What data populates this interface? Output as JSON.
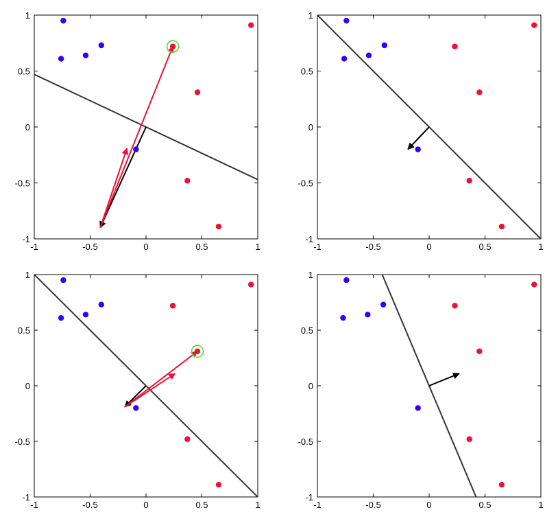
{
  "chart_data": [
    {
      "type": "scatter",
      "panel": "top-left",
      "xlim": [
        -1,
        1
      ],
      "ylim": [
        -1,
        1
      ],
      "xticks": [
        "-1",
        "-0.5",
        "0",
        "0.5",
        "1"
      ],
      "yticks": [
        "-1",
        "-0.5",
        "0",
        "0.5",
        "1"
      ],
      "grid": false,
      "series": [
        {
          "color": "#3300ff",
          "points": [
            [
              -0.74,
              0.95
            ],
            [
              -0.4,
              0.73
            ],
            [
              -0.54,
              0.64
            ],
            [
              -0.76,
              0.61
            ],
            [
              -0.09,
              -0.2
            ]
          ]
        },
        {
          "color": "#ee1133",
          "points": [
            [
              0.94,
              0.91
            ],
            [
              0.24,
              0.72
            ],
            [
              0.46,
              0.31
            ],
            [
              0.37,
              -0.48
            ],
            [
              0.65,
              -0.89
            ]
          ]
        }
      ],
      "highlight": {
        "point": [
          0.24,
          0.72
        ],
        "color": "#55dd33"
      },
      "boundary": [
        [
          -1,
          0.47
        ],
        [
          1,
          -0.47
        ]
      ],
      "arrows": [
        {
          "from": [
            0,
            0
          ],
          "to": [
            -0.41,
            -0.9
          ],
          "color": "#000000"
        },
        {
          "from": [
            -0.41,
            -0.9
          ],
          "to": [
            -0.17,
            -0.19
          ],
          "color": "#ee1133"
        },
        {
          "from": [
            -0.41,
            -0.9
          ],
          "to": [
            0.24,
            0.72
          ],
          "color": "#ee1133"
        }
      ]
    },
    {
      "type": "scatter",
      "panel": "top-right",
      "xlim": [
        -1,
        1
      ],
      "ylim": [
        -1,
        1
      ],
      "xticks": [
        "-1",
        "-0.5",
        "0",
        "0.5",
        "1"
      ],
      "yticks": [
        "-1",
        "-0.5",
        "0",
        "0.5",
        "1"
      ],
      "grid": false,
      "series": [
        {
          "color": "#3300ff",
          "points": [
            [
              -0.74,
              0.95
            ],
            [
              -0.4,
              0.73
            ],
            [
              -0.54,
              0.64
            ],
            [
              -0.76,
              0.61
            ],
            [
              -0.1,
              -0.2
            ]
          ]
        },
        {
          "color": "#ee1133",
          "points": [
            [
              0.94,
              0.91
            ],
            [
              0.23,
              0.72
            ],
            [
              0.45,
              0.31
            ],
            [
              0.36,
              -0.48
            ],
            [
              0.65,
              -0.89
            ]
          ]
        }
      ],
      "boundary": [
        [
          -1,
          1
        ],
        [
          1,
          -1
        ]
      ],
      "arrows": [
        {
          "from": [
            0,
            0
          ],
          "to": [
            -0.19,
            -0.2
          ],
          "color": "#000000"
        }
      ]
    },
    {
      "type": "scatter",
      "panel": "bottom-left",
      "xlim": [
        -1,
        1
      ],
      "ylim": [
        -1,
        1
      ],
      "xticks": [
        "-1",
        "-0.5",
        "0",
        "0.5",
        "1"
      ],
      "yticks": [
        "-1",
        "-0.5",
        "0",
        "0.5",
        "1"
      ],
      "grid": false,
      "series": [
        {
          "color": "#3300ff",
          "points": [
            [
              -0.74,
              0.95
            ],
            [
              -0.4,
              0.73
            ],
            [
              -0.54,
              0.64
            ],
            [
              -0.76,
              0.61
            ],
            [
              -0.09,
              -0.2
            ]
          ]
        },
        {
          "color": "#ee1133",
          "points": [
            [
              0.94,
              0.91
            ],
            [
              0.24,
              0.72
            ],
            [
              0.46,
              0.31
            ],
            [
              0.37,
              -0.48
            ],
            [
              0.65,
              -0.89
            ]
          ]
        }
      ],
      "highlight": {
        "point": [
          0.46,
          0.31
        ],
        "color": "#55dd33"
      },
      "boundary": [
        [
          -1,
          1
        ],
        [
          1,
          -1
        ]
      ],
      "arrows": [
        {
          "from": [
            0,
            0
          ],
          "to": [
            -0.19,
            -0.19
          ],
          "color": "#000000"
        },
        {
          "from": [
            -0.19,
            -0.19
          ],
          "to": [
            0.26,
            0.11
          ],
          "color": "#ee1133"
        },
        {
          "from": [
            -0.19,
            -0.19
          ],
          "to": [
            0.46,
            0.31
          ],
          "color": "#ee1133"
        }
      ]
    },
    {
      "type": "scatter",
      "panel": "bottom-right",
      "xlim": [
        -1,
        1
      ],
      "ylim": [
        -1,
        1
      ],
      "xticks": [
        "-1",
        "-0.5",
        "0",
        "0.5",
        "1"
      ],
      "yticks": [
        "-1",
        "-0.5",
        "0",
        "0.5",
        "1"
      ],
      "grid": false,
      "series": [
        {
          "color": "#3300ff",
          "points": [
            [
              -0.74,
              0.95
            ],
            [
              -0.41,
              0.73
            ],
            [
              -0.55,
              0.64
            ],
            [
              -0.77,
              0.61
            ],
            [
              -0.1,
              -0.2
            ]
          ]
        },
        {
          "color": "#ee1133",
          "points": [
            [
              0.94,
              0.91
            ],
            [
              0.23,
              0.72
            ],
            [
              0.45,
              0.31
            ],
            [
              0.36,
              -0.48
            ],
            [
              0.65,
              -0.89
            ]
          ]
        }
      ],
      "boundary": [
        [
          -0.42,
          1
        ],
        [
          0.42,
          -1
        ]
      ],
      "arrows": [
        {
          "from": [
            0,
            0
          ],
          "to": [
            0.27,
            0.11
          ],
          "color": "#000000"
        }
      ]
    }
  ]
}
